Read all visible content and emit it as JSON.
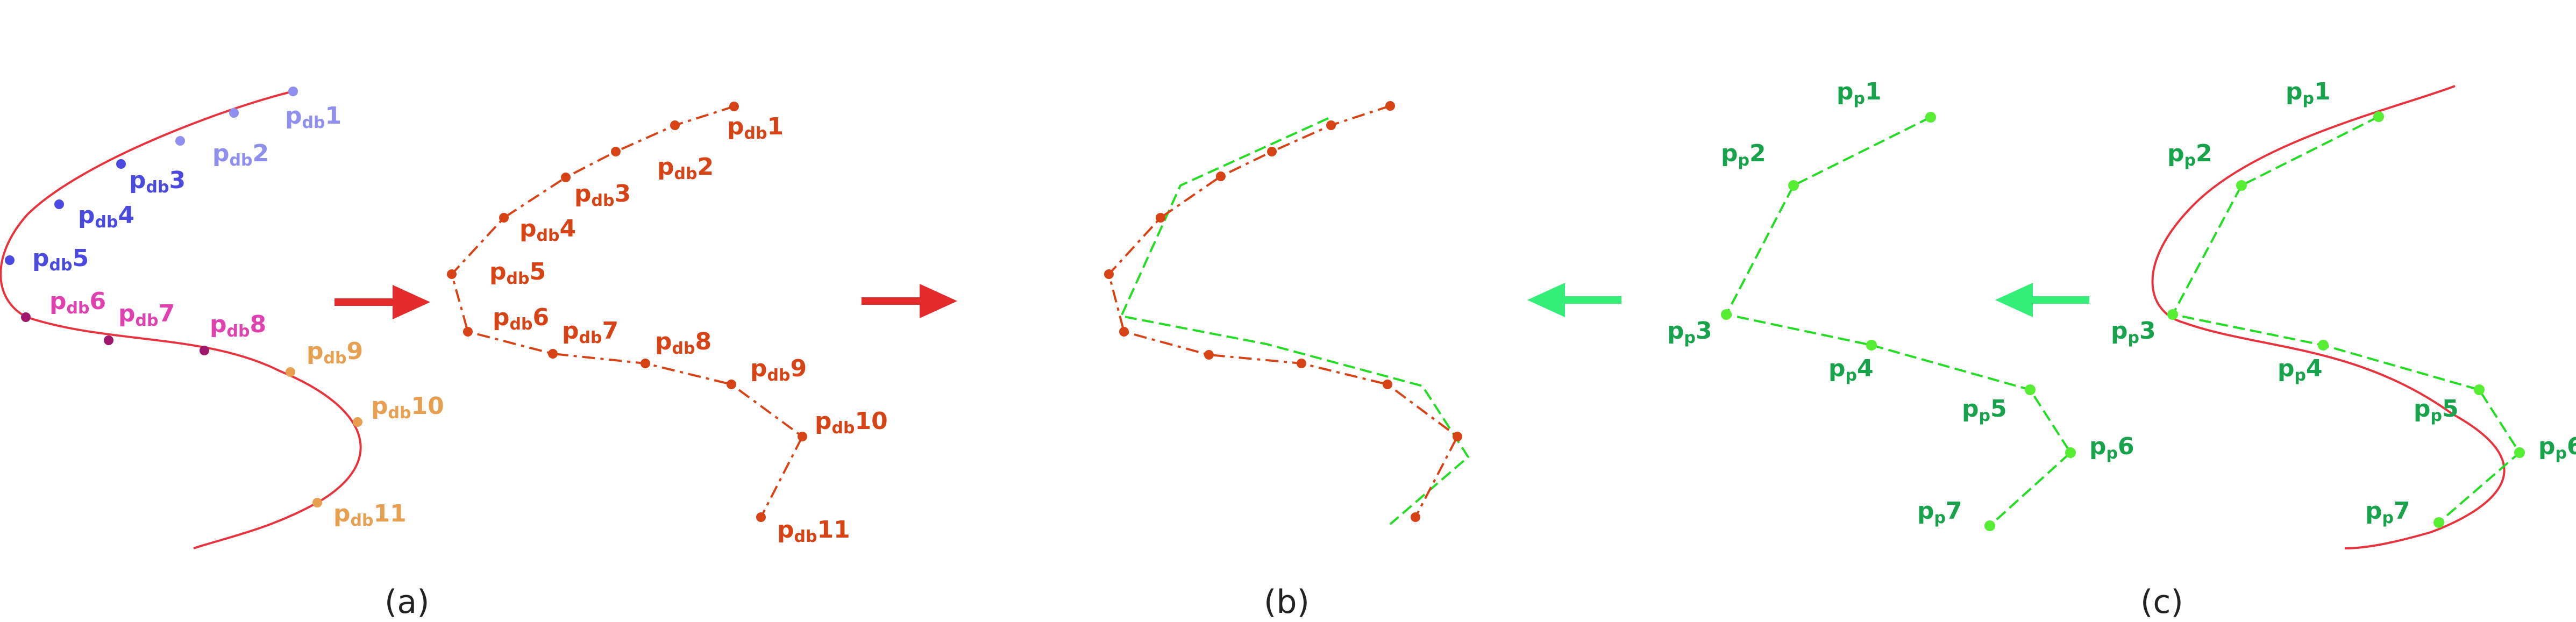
{
  "colors": {
    "curve_red": "#e8333c",
    "arrow_red": "#e42b2b",
    "arrow_green": "#33ee77",
    "orange": "#d84315",
    "green_label": "#17a34a",
    "green_dash": "#22dd22",
    "green_point": "#55ee33",
    "blue_dark": "#4a4ae0",
    "blue_light": "#8f8ff0",
    "magenta_dark": "#a0186e",
    "magenta": "#e040b0",
    "orange_light": "#e8a050"
  },
  "captions": {
    "a": "(a)",
    "b": "(b)",
    "c": "(c)"
  },
  "panel_a": {
    "subscript": "db",
    "points": [
      {
        "label": "p",
        "num": "1"
      },
      {
        "label": "p",
        "num": "2"
      },
      {
        "label": "p",
        "num": "3"
      },
      {
        "label": "p",
        "num": "4"
      },
      {
        "label": "p",
        "num": "5"
      },
      {
        "label": "p",
        "num": "6"
      },
      {
        "label": "p",
        "num": "7"
      },
      {
        "label": "p",
        "num": "8"
      },
      {
        "label": "p",
        "num": "9"
      },
      {
        "label": "p",
        "num": "10"
      },
      {
        "label": "p",
        "num": "11"
      }
    ]
  },
  "panel_db": {
    "subscript": "db",
    "labels": [
      "1",
      "2",
      "3",
      "4",
      "5",
      "6",
      "7",
      "8",
      "9",
      "10",
      "11"
    ]
  },
  "panel_pp": {
    "subscript": "p",
    "labels": [
      "1",
      "2",
      "3",
      "4",
      "5",
      "6",
      "7"
    ]
  },
  "panel_c": {
    "subscript": "p",
    "labels": [
      "1",
      "2",
      "3",
      "4",
      "5",
      "6",
      "7"
    ]
  },
  "arrows": [
    {
      "direction": "right",
      "color": "red"
    },
    {
      "direction": "right",
      "color": "red"
    },
    {
      "direction": "left",
      "color": "green"
    },
    {
      "direction": "left",
      "color": "green"
    }
  ]
}
